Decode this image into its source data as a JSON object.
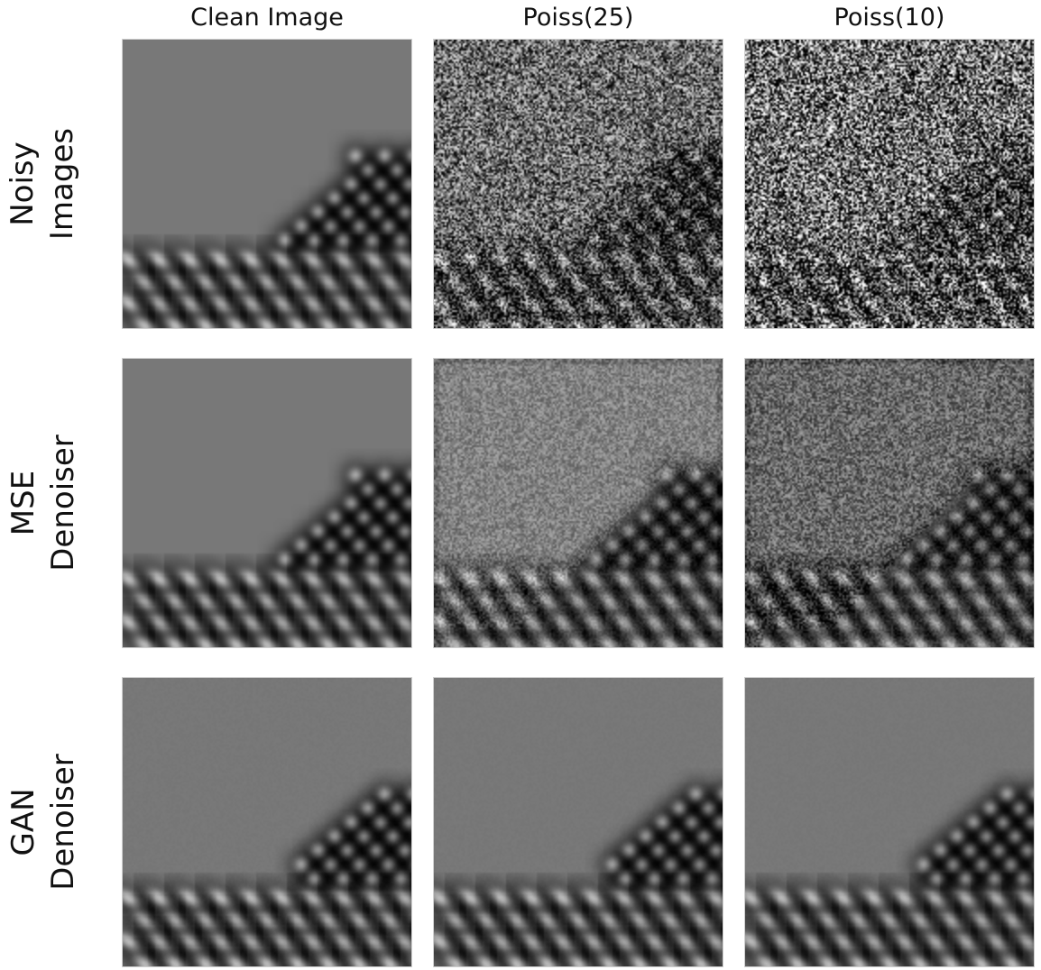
{
  "columns": [
    {
      "title": "Clean Image",
      "noise": 0
    },
    {
      "title": "Poiss(25)",
      "noise": 0.28
    },
    {
      "title": "Poiss(10)",
      "noise": 0.42
    }
  ],
  "rows": [
    {
      "label_line1": "Noisy",
      "label_line2": "Images",
      "kind": "noisy"
    },
    {
      "label_line1": "MSE",
      "label_line2": "Denoiser",
      "kind": "mse"
    },
    {
      "label_line1": "GAN",
      "label_line2": "Denoiser",
      "kind": "gan"
    }
  ],
  "colors": {
    "background_gray": "#7a7a7a"
  }
}
